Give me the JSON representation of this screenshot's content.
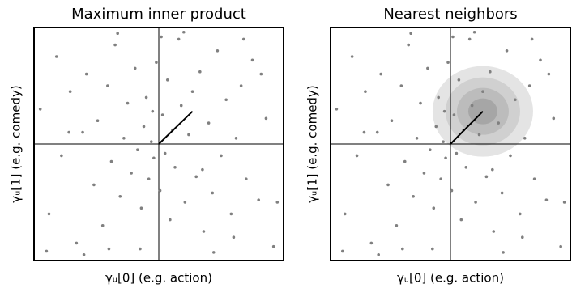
{
  "chart_data": [
    {
      "type": "scatter",
      "title": "Maximum inner product",
      "xlabel": "γᵤ[0] (e.g. action)",
      "ylabel": "γᵤ[1] (e.g. comedy)",
      "xlim": [
        -1,
        1
      ],
      "ylim": [
        -1,
        1
      ],
      "color": "#808080",
      "vector": [
        0.27,
        0.28
      ],
      "neighborhood": false,
      "x": [
        -0.95,
        -0.88,
        -0.82,
        -0.78,
        -0.71,
        -0.66,
        -0.61,
        -0.58,
        -0.52,
        -0.49,
        -0.45,
        -0.41,
        -0.38,
        -0.35,
        -0.31,
        -0.28,
        -0.25,
        -0.22,
        -0.19,
        -0.17,
        -0.14,
        -0.12,
        -0.1,
        -0.08,
        -0.06,
        -0.04,
        -0.02,
        0.01,
        0.03,
        0.05,
        0.07,
        0.09,
        0.11,
        0.13,
        0.16,
        0.18,
        0.21,
        0.24,
        0.27,
        0.3,
        0.33,
        0.36,
        0.4,
        0.43,
        0.47,
        0.5,
        0.54,
        0.58,
        0.62,
        0.66,
        0.7,
        0.75,
        0.8,
        0.86,
        0.92,
        -0.9,
        -0.6,
        -0.33,
        -0.15,
        0.02,
        0.2,
        0.44,
        0.68,
        0.95,
        -0.72,
        -0.4,
        -0.05,
        0.35,
        0.6,
        0.82
      ],
      "y": [
        0.3,
        -0.6,
        0.75,
        -0.1,
        0.45,
        -0.85,
        0.1,
        0.6,
        -0.35,
        0.2,
        -0.7,
        0.5,
        -0.15,
        0.85,
        -0.45,
        0.05,
        0.35,
        -0.25,
        0.65,
        -0.05,
        -0.55,
        0.15,
        0.4,
        -0.3,
        0.02,
        -0.12,
        0.7,
        -0.4,
        0.25,
        -0.08,
        0.55,
        -0.65,
        0.12,
        -0.2,
        0.9,
        0.33,
        -0.5,
        0.08,
        0.45,
        -0.28,
        0.62,
        -0.75,
        0.18,
        -0.42,
        0.8,
        -0.1,
        0.38,
        -0.6,
        0.05,
        0.5,
        -0.3,
        0.72,
        -0.48,
        0.22,
        -0.88,
        -0.92,
        -0.95,
        0.95,
        -0.9,
        0.92,
        0.96,
        -0.93,
        0.9,
        -0.5,
        0.1,
        -0.9,
        0.28,
        -0.22,
        -0.8,
        0.6
      ]
    },
    {
      "type": "scatter",
      "title": "Nearest neighbors",
      "xlabel": "γᵤ[0] (e.g. action)",
      "ylabel": "γᵤ[1] (e.g. comedy)",
      "xlim": [
        -1,
        1
      ],
      "ylim": [
        -1,
        1
      ],
      "color": "#808080",
      "vector": [
        0.27,
        0.28
      ],
      "neighborhood": true,
      "x": [
        -0.95,
        -0.88,
        -0.82,
        -0.78,
        -0.71,
        -0.66,
        -0.61,
        -0.58,
        -0.52,
        -0.49,
        -0.45,
        -0.41,
        -0.38,
        -0.35,
        -0.31,
        -0.28,
        -0.25,
        -0.22,
        -0.19,
        -0.17,
        -0.14,
        -0.12,
        -0.1,
        -0.08,
        -0.06,
        -0.04,
        -0.02,
        0.01,
        0.03,
        0.05,
        0.07,
        0.09,
        0.11,
        0.13,
        0.16,
        0.18,
        0.21,
        0.24,
        0.27,
        0.3,
        0.33,
        0.36,
        0.4,
        0.43,
        0.47,
        0.5,
        0.54,
        0.58,
        0.62,
        0.66,
        0.7,
        0.75,
        0.8,
        0.86,
        0.92,
        -0.9,
        -0.6,
        -0.33,
        -0.15,
        0.02,
        0.2,
        0.44,
        0.68,
        0.95,
        -0.72,
        -0.4,
        -0.05,
        0.35,
        0.6,
        0.82
      ],
      "y": [
        0.3,
        -0.6,
        0.75,
        -0.1,
        0.45,
        -0.85,
        0.1,
        0.6,
        -0.35,
        0.2,
        -0.7,
        0.5,
        -0.15,
        0.85,
        -0.45,
        0.05,
        0.35,
        -0.25,
        0.65,
        -0.05,
        -0.55,
        0.15,
        0.4,
        -0.3,
        0.02,
        -0.12,
        0.7,
        -0.4,
        0.25,
        -0.08,
        0.55,
        -0.65,
        0.12,
        -0.2,
        0.9,
        0.33,
        -0.5,
        0.08,
        0.45,
        -0.28,
        0.62,
        -0.75,
        0.18,
        -0.42,
        0.8,
        -0.1,
        0.38,
        -0.6,
        0.05,
        0.5,
        -0.3,
        0.72,
        -0.48,
        0.22,
        -0.88,
        -0.92,
        -0.95,
        0.95,
        -0.9,
        0.92,
        0.96,
        -0.93,
        0.9,
        -0.5,
        0.1,
        -0.9,
        0.28,
        -0.22,
        -0.8,
        0.6
      ]
    }
  ]
}
